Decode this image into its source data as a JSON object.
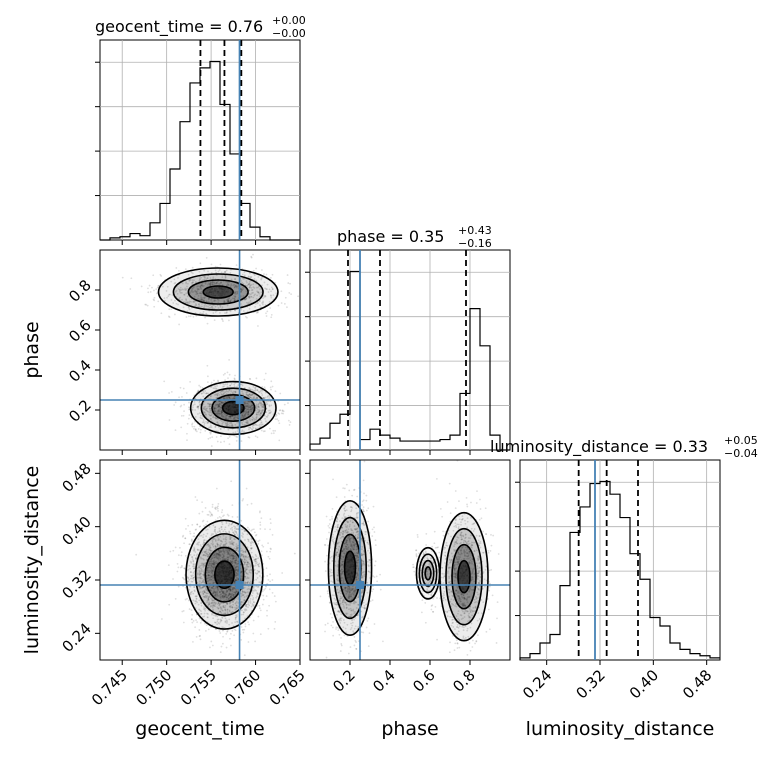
{
  "figure": {
    "type": "corner-plot",
    "colors": {
      "truth": "#4682b4",
      "hist": "#000000",
      "grid": "#b0b0b0",
      "density": "#000000"
    }
  },
  "chart_data": [
    {
      "type": "histogram",
      "param": "geocent_time",
      "title_prefix": "geocent_time = 0.76",
      "title_plus": "+0.00",
      "title_minus": "−0.00",
      "xlim": [
        0.7425,
        0.765
      ],
      "bin_edges_start": 0.7425,
      "bin_width": 0.001125,
      "counts": [
        0,
        1,
        1.5,
        3,
        2,
        8,
        17,
        33,
        55,
        73,
        80,
        83,
        63,
        40,
        17,
        6,
        1.5,
        0,
        0,
        0
      ],
      "quantiles": [
        0.7538,
        0.7565,
        0.7584
      ],
      "truth": 0.7582,
      "grid": true
    },
    {
      "type": "histogram",
      "param": "phase",
      "title_prefix": "phase = 0.35",
      "title_plus": "+0.43",
      "title_minus": "−0.16",
      "xlim": [
        0.0,
        1.0
      ],
      "bin_edges_start": 0.0,
      "bin_width": 0.05,
      "counts": [
        4,
        8,
        18,
        24,
        120,
        7,
        14,
        10,
        8,
        6,
        6,
        6,
        6,
        7,
        10,
        38,
        95,
        70,
        10,
        0
      ],
      "quantiles": [
        0.19,
        0.35,
        0.78
      ],
      "truth": 0.25,
      "grid": true
    },
    {
      "type": "histogram",
      "param": "luminosity_distance",
      "title_prefix": "luminosity_distance = 0.33",
      "title_plus": "+0.05",
      "title_minus": "−0.04",
      "xlim": [
        0.2,
        0.5
      ],
      "bin_edges_start": 0.2,
      "bin_width": 0.015,
      "counts": [
        1,
        3,
        8,
        12,
        35,
        60,
        72,
        83,
        84,
        78,
        67,
        50,
        38,
        20,
        16,
        8,
        5,
        3,
        2,
        1
      ],
      "quantiles": [
        0.288,
        0.33,
        0.377
      ],
      "truth": 0.3125,
      "grid": true
    },
    {
      "type": "density-2d",
      "x_param": "geocent_time",
      "y_param": "phase",
      "xlim": [
        0.7425,
        0.765
      ],
      "ylim": [
        0.0,
        1.0
      ],
      "truth": [
        0.7582,
        0.25
      ],
      "modes": [
        {
          "cx": 0.7575,
          "cy": 0.21,
          "sx": 0.002,
          "sy": 0.055,
          "w": 1.0
        },
        {
          "cx": 0.7558,
          "cy": 0.79,
          "sx": 0.0028,
          "sy": 0.05,
          "w": 0.65
        }
      ]
    },
    {
      "type": "density-2d",
      "x_param": "geocent_time",
      "y_param": "luminosity_distance",
      "xlim": [
        0.7425,
        0.765
      ],
      "ylim": [
        0.2,
        0.5
      ],
      "truth": [
        0.7582,
        0.3125
      ],
      "modes": [
        {
          "cx": 0.7565,
          "cy": 0.328,
          "sx": 0.0018,
          "sy": 0.034,
          "w": 1.0
        }
      ]
    },
    {
      "type": "density-2d",
      "x_param": "phase",
      "y_param": "luminosity_distance",
      "xlim": [
        0.0,
        1.0
      ],
      "ylim": [
        0.2,
        0.5
      ],
      "truth": [
        0.25,
        0.3125
      ],
      "modes": [
        {
          "cx": 0.2,
          "cy": 0.338,
          "sx": 0.045,
          "sy": 0.042,
          "w": 1.0
        },
        {
          "cx": 0.77,
          "cy": 0.325,
          "sx": 0.05,
          "sy": 0.04,
          "w": 0.75
        },
        {
          "cx": 0.59,
          "cy": 0.33,
          "sx": 0.03,
          "sy": 0.02,
          "w": 0.2
        }
      ]
    }
  ],
  "axes": {
    "geocent_time": {
      "label": "geocent_time",
      "ticks": [
        0.745,
        0.75,
        0.755,
        0.76,
        0.765
      ],
      "tick_labels": [
        "0.745",
        "0.750",
        "0.755",
        "0.760",
        "0.765"
      ]
    },
    "phase": {
      "label": "phase",
      "ticks": [
        0.2,
        0.4,
        0.6,
        0.8
      ],
      "tick_labels": [
        "0.2",
        "0.4",
        "0.6",
        "0.8"
      ]
    },
    "luminosity_distance": {
      "label": "luminosity_distance",
      "ticks": [
        0.24,
        0.32,
        0.4,
        0.48
      ],
      "tick_labels": [
        "0.24",
        "0.32",
        "0.40",
        "0.48"
      ]
    }
  }
}
